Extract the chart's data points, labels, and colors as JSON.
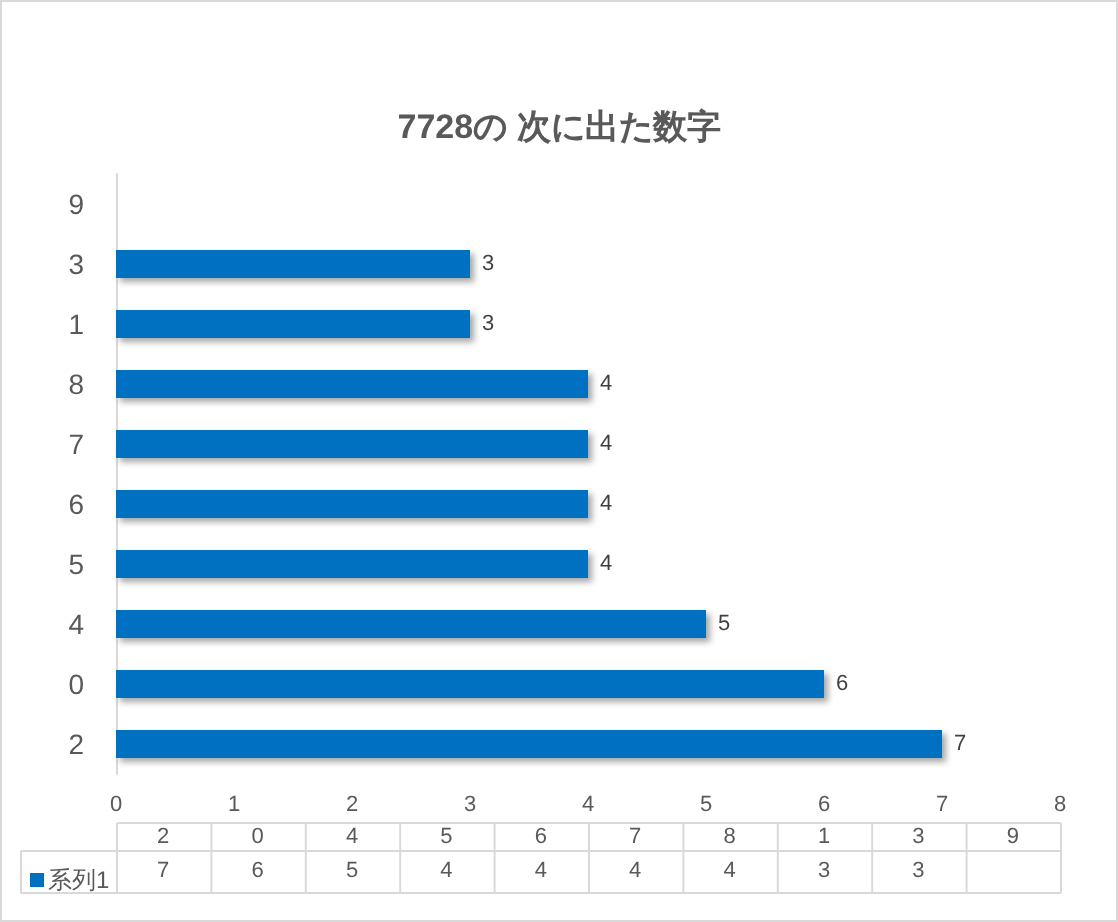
{
  "chart_data": {
    "type": "bar",
    "orientation": "horizontal",
    "title": "7728の 次に出た数字",
    "categories": [
      "9",
      "3",
      "1",
      "8",
      "7",
      "6",
      "5",
      "4",
      "0",
      "2"
    ],
    "series": [
      {
        "name": "系列1",
        "color": "#0070c0",
        "values": [
          null,
          3,
          3,
          4,
          4,
          4,
          4,
          5,
          6,
          7
        ]
      }
    ],
    "xlim": [
      0,
      8
    ],
    "xticks": [
      0,
      1,
      2,
      3,
      4,
      5,
      6,
      7,
      8
    ],
    "grid": false,
    "legend": "bottom left",
    "data_labels": true
  }
}
